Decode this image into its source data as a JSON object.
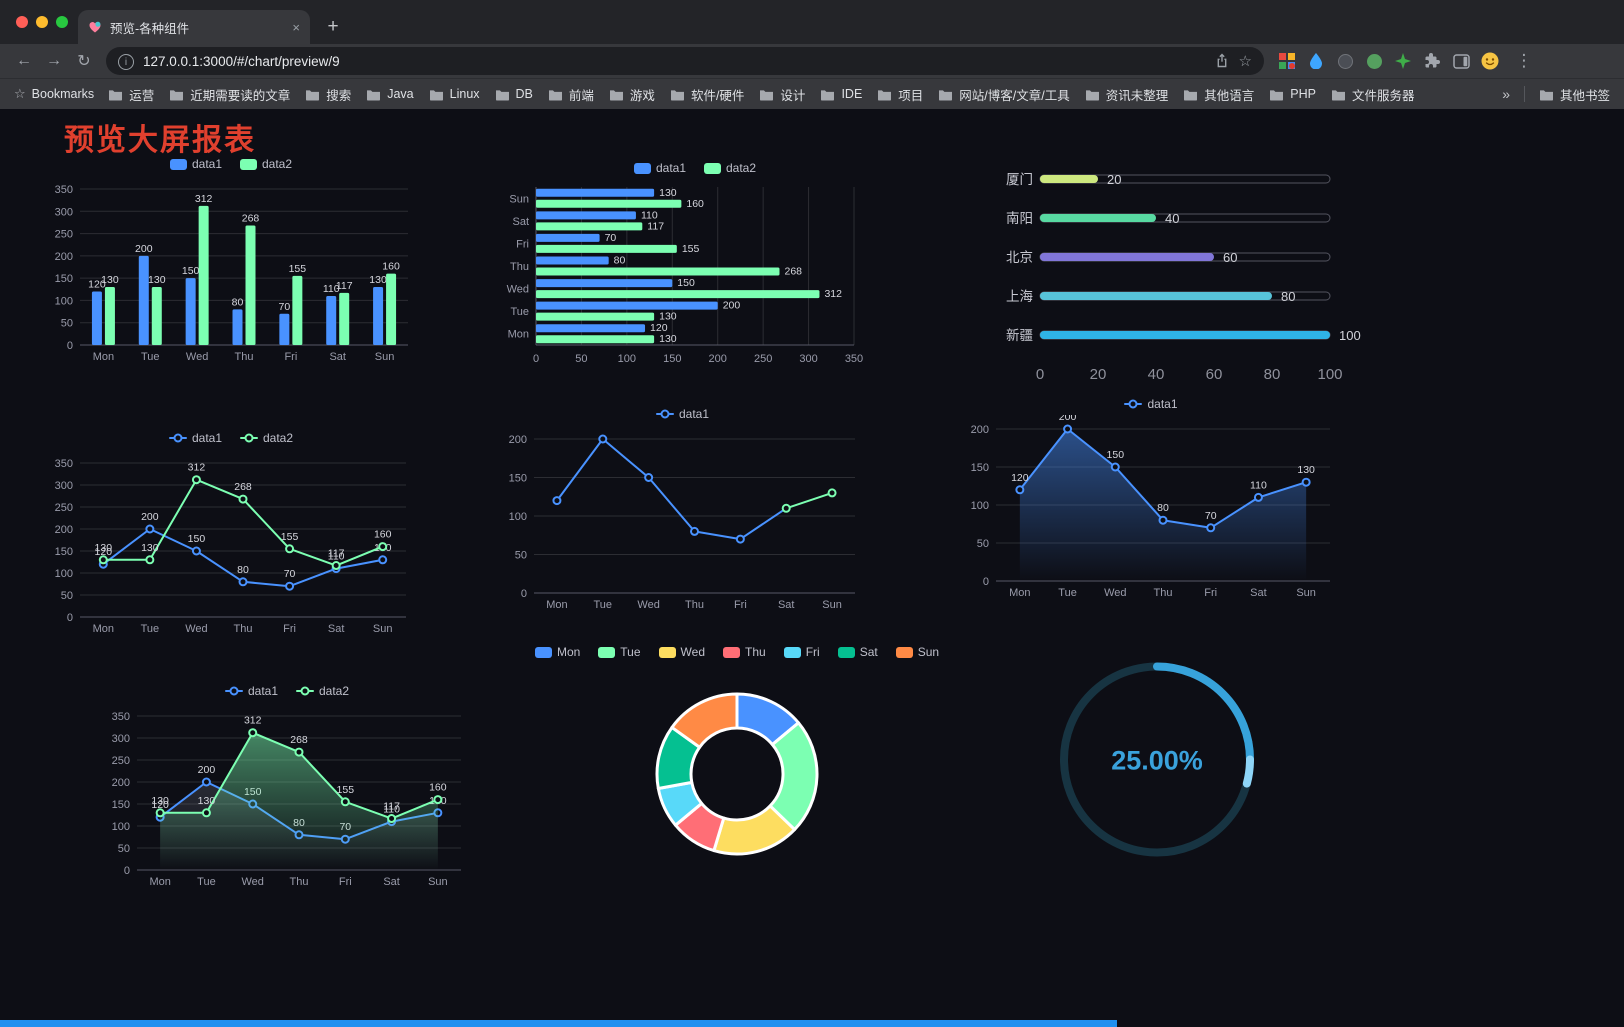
{
  "browser": {
    "tab": {
      "title": "预览-各种组件"
    },
    "toolbar": {
      "url": "127.0.0.1:3000/#/chart/preview/9"
    },
    "bookmarks_bar": {
      "label": "Bookmarks",
      "items": [
        "运营",
        "近期需要读的文章",
        "搜索",
        "Java",
        "Linux",
        "DB",
        "前端",
        "游戏",
        "软件/硬件",
        "设计",
        "IDE",
        "项目",
        "网站/博客/文章/工具",
        "资讯未整理",
        "其他语言",
        "PHP",
        "文件服务器"
      ],
      "overflow": "»",
      "other": "其他书签"
    },
    "icons": {
      "back": "←",
      "forward": "→",
      "reload": "↻",
      "new_tab": "+",
      "close_tab": "×",
      "menu": "⋮",
      "star": "☆",
      "info": "i"
    }
  },
  "page": {
    "title": "预览大屏报表",
    "title_color": "#e0402e",
    "background": "#0d0e15",
    "bottom_bar_color": "#2090ef"
  },
  "chart_data": [
    {
      "id": "grouped-bar",
      "type": "bar",
      "categories": [
        "Mon",
        "Tue",
        "Wed",
        "Thu",
        "Fri",
        "Sat",
        "Sun"
      ],
      "legend": [
        {
          "label": "data1",
          "color": "#4992ff"
        },
        {
          "label": "data2",
          "color": "#7cffb2"
        }
      ],
      "series": [
        {
          "name": "data1",
          "color": "#4992ff",
          "values": [
            120,
            200,
            150,
            80,
            70,
            110,
            130
          ]
        },
        {
          "name": "data2",
          "color": "#7cffb2",
          "values": [
            130,
            130,
            312,
            268,
            155,
            117,
            160
          ]
        }
      ],
      "ylim": [
        0,
        350
      ],
      "ystep": 50,
      "show_labels": true
    },
    {
      "id": "horizontal-bar",
      "type": "hbar",
      "categories": [
        "Mon",
        "Tue",
        "Wed",
        "Thu",
        "Fri",
        "Sat",
        "Sun"
      ],
      "legend": [
        {
          "label": "data1",
          "color": "#4992ff"
        },
        {
          "label": "data2",
          "color": "#7cffb2"
        }
      ],
      "series": [
        {
          "name": "data1",
          "color": "#4992ff",
          "values": [
            120,
            200,
            150,
            80,
            70,
            110,
            130
          ]
        },
        {
          "name": "data2",
          "color": "#7cffb2",
          "values": [
            130,
            130,
            312,
            268,
            155,
            117,
            160
          ]
        }
      ],
      "xlim": [
        0,
        350
      ],
      "xstep": 50,
      "show_labels": true
    },
    {
      "id": "city-progress",
      "type": "progress-list",
      "max": 100,
      "xticks": [
        0,
        20,
        40,
        60,
        80,
        100
      ],
      "items": [
        {
          "label": "厦门",
          "value": 20,
          "color": "#cde87f"
        },
        {
          "label": "南阳",
          "value": 40,
          "color": "#58d9a2"
        },
        {
          "label": "北京",
          "value": 60,
          "color": "#8176d8"
        },
        {
          "label": "上海",
          "value": 80,
          "color": "#57c3d9"
        },
        {
          "label": "新疆",
          "value": 100,
          "color": "#2fb3e6"
        }
      ]
    },
    {
      "id": "two-line",
      "type": "line",
      "categories": [
        "Mon",
        "Tue",
        "Wed",
        "Thu",
        "Fri",
        "Sat",
        "Sun"
      ],
      "legend": [
        {
          "label": "data1",
          "color": "#4992ff"
        },
        {
          "label": "data2",
          "color": "#7cffb2"
        }
      ],
      "series": [
        {
          "name": "data1",
          "color": "#4992ff",
          "values": [
            120,
            200,
            150,
            80,
            70,
            110,
            130
          ]
        },
        {
          "name": "data2",
          "color": "#7cffb2",
          "values": [
            130,
            130,
            312,
            268,
            155,
            117,
            160
          ]
        }
      ],
      "ylim": [
        0,
        350
      ],
      "ystep": 50,
      "show_labels": true
    },
    {
      "id": "single-line",
      "type": "line",
      "categories": [
        "Mon",
        "Tue",
        "Wed",
        "Thu",
        "Fri",
        "Sat",
        "Sun"
      ],
      "legend": [
        {
          "label": "data1",
          "color": "#4992ff"
        }
      ],
      "series": [
        {
          "name": "data1",
          "color": "#4992ff",
          "values": [
            120,
            200,
            150,
            80,
            70,
            110,
            130
          ],
          "tail_from": 5,
          "tail_color": "#7cffb2"
        }
      ],
      "ylim": [
        0,
        200
      ],
      "ystep": 50,
      "show_labels": false
    },
    {
      "id": "area-line",
      "type": "line",
      "categories": [
        "Mon",
        "Tue",
        "Wed",
        "Thu",
        "Fri",
        "Sat",
        "Sun"
      ],
      "legend": [
        {
          "label": "data1",
          "color": "#4992ff"
        }
      ],
      "series": [
        {
          "name": "data1",
          "color": "#4992ff",
          "values": [
            120,
            200,
            150,
            80,
            70,
            110,
            130
          ],
          "area": true,
          "area_color": "#4992ff",
          "area_opacity": 0.5
        }
      ],
      "ylim": [
        0,
        200
      ],
      "ystep": 50,
      "show_labels": true
    },
    {
      "id": "two-line-area",
      "type": "line",
      "categories": [
        "Mon",
        "Tue",
        "Wed",
        "Thu",
        "Fri",
        "Sat",
        "Sun"
      ],
      "legend": [
        {
          "label": "data1",
          "color": "#4992ff"
        },
        {
          "label": "data2",
          "color": "#7cffb2"
        }
      ],
      "series": [
        {
          "name": "data1",
          "color": "#4992ff",
          "values": [
            120,
            200,
            150,
            80,
            70,
            110,
            130
          ],
          "area": true,
          "area_color": "#aab2c8",
          "area_opacity": 0.18
        },
        {
          "name": "data2",
          "color": "#7cffb2",
          "values": [
            130,
            130,
            312,
            268,
            155,
            117,
            160
          ],
          "area": true,
          "area_color": "#7cffb2",
          "area_opacity": 0.5
        }
      ],
      "ylim": [
        0,
        350
      ],
      "ystep": 50,
      "show_labels": true
    },
    {
      "id": "donut",
      "type": "pie",
      "slices": [
        {
          "label": "Mon",
          "value": 120,
          "color": "#4992ff"
        },
        {
          "label": "Tue",
          "value": 200,
          "color": "#7cffb2"
        },
        {
          "label": "Wed",
          "value": 150,
          "color": "#fddd60"
        },
        {
          "label": "Thu",
          "value": 80,
          "color": "#ff6e76"
        },
        {
          "label": "Fri",
          "value": 70,
          "color": "#58d9f9"
        },
        {
          "label": "Sat",
          "value": 110,
          "color": "#05c091"
        },
        {
          "label": "Sun",
          "value": 130,
          "color": "#ff8a45"
        }
      ]
    },
    {
      "id": "progress-circle",
      "type": "progress-circle",
      "label": "25.00%",
      "percent": 25,
      "color": "#37a2da",
      "track_color": "#1d4a5b",
      "highlight_color": "#8ed5f8",
      "label_color": "#3aa2dc"
    }
  ]
}
